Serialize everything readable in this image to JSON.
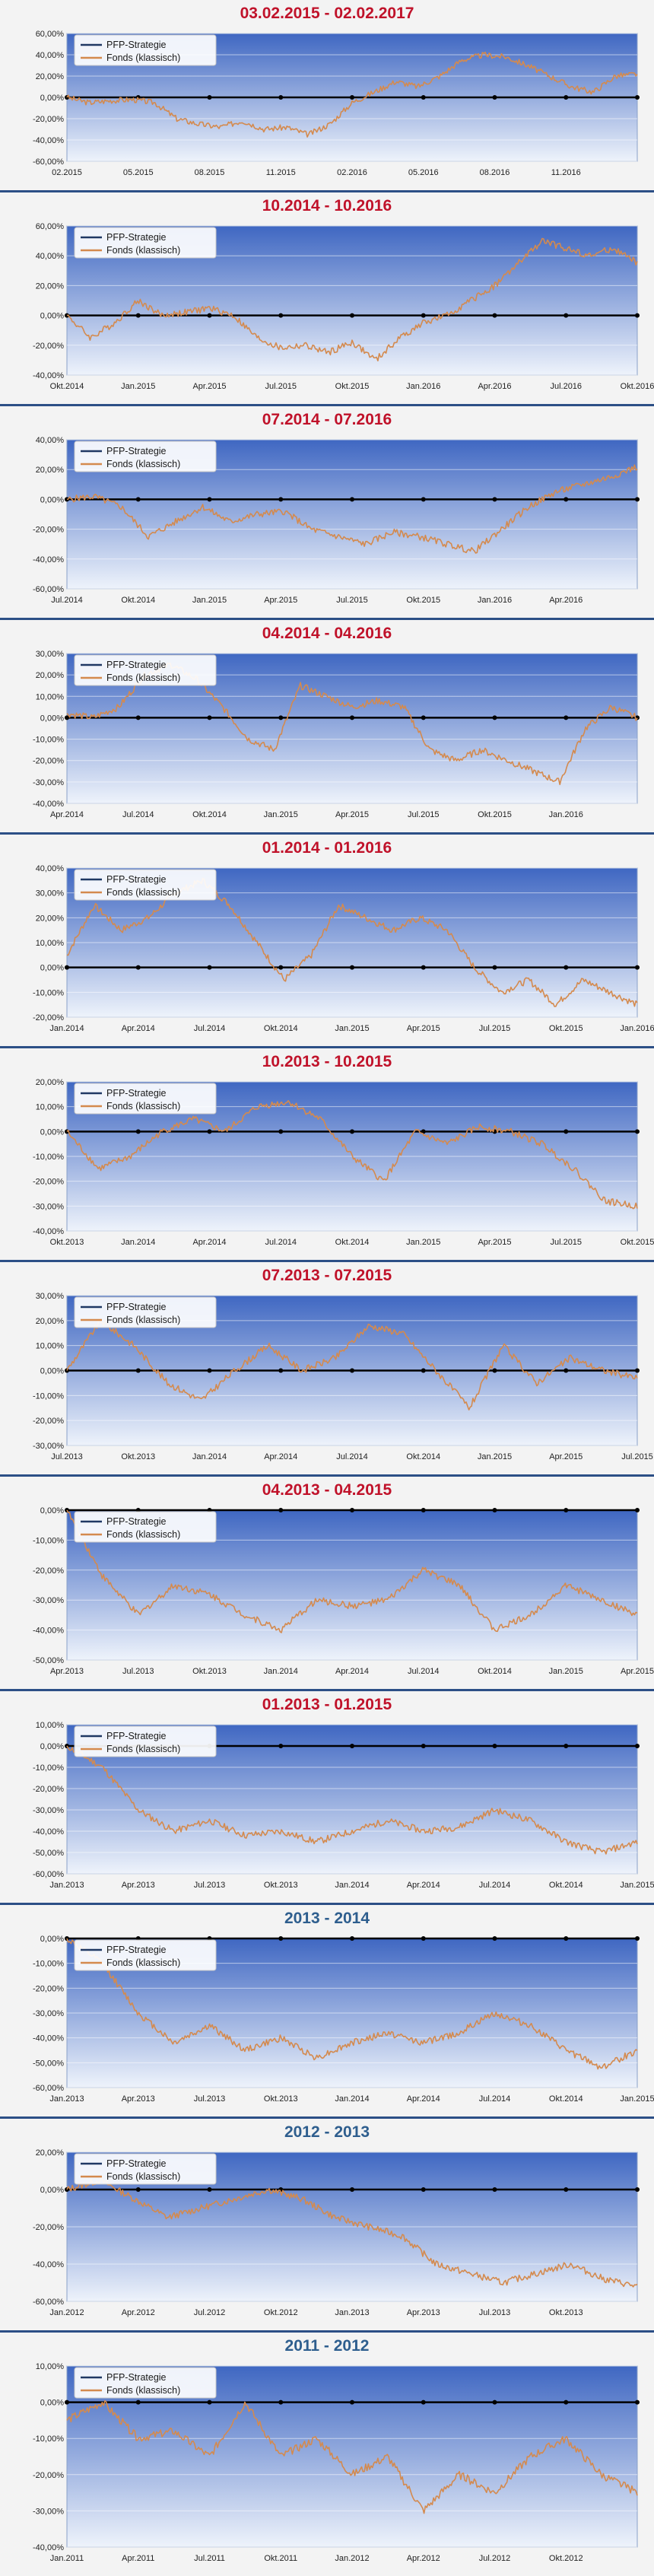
{
  "colors": {
    "title_red": "#c0122a",
    "title_blue": "#2e5e8e",
    "strategy_line": "#1f3864",
    "fund_line": "#d48a4e",
    "zero_line": "#000000",
    "plot_bg_top": "#3f67c2",
    "plot_bg_bottom": "#eef3fb",
    "panel_separator": "#2c4f86"
  },
  "chart_data": [
    {
      "type": "line",
      "title": "03.02.2015 - 02.02.2017",
      "title_color": "red",
      "ylim": [
        -60,
        60
      ],
      "yticks": [
        "60,00%",
        "40,00%",
        "20,00%",
        "0,00%",
        "-20,00%",
        "-40,00%",
        "-60,00%"
      ],
      "xticks": [
        "02.2015",
        "05.2015",
        "08.2015",
        "11.2015",
        "02.2016",
        "05.2016",
        "08.2016",
        "11.2016"
      ],
      "x_start": "2015-02",
      "x_end": "2017-02",
      "legend": [
        "PFP-Strategie",
        "Fonds (klassisch)"
      ],
      "strategy_values": [
        0,
        0,
        0,
        0,
        0,
        0,
        0,
        0,
        0
      ],
      "fund_values": [
        0,
        -5,
        -3,
        -2,
        -5,
        -20,
        -25,
        -28,
        -22,
        -30,
        -28,
        -35,
        -25,
        -5,
        5,
        15,
        10,
        20,
        35,
        40,
        38,
        30,
        20,
        10,
        5,
        20,
        22
      ]
    },
    {
      "type": "line",
      "title": "10.2014 - 10.2016",
      "title_color": "red",
      "ylim": [
        -40,
        60
      ],
      "yticks": [
        "60,00%",
        "40,00%",
        "20,00%",
        "0,00%",
        "-20,00%",
        "-40,00%"
      ],
      "xticks": [
        "Okt.2014",
        "Jan.2015",
        "Apr.2015",
        "Jul.2015",
        "Okt.2015",
        "Jan.2016",
        "Apr.2016",
        "Jul.2016",
        "Okt.2016"
      ],
      "x_start": "2014-10",
      "x_end": "2016-10",
      "legend": [
        "PFP-Strategie",
        "Fonds (klassisch)"
      ],
      "strategy_values": [
        0,
        0,
        0,
        0,
        0,
        0,
        0,
        0,
        0
      ],
      "fund_values": [
        0,
        -15,
        -5,
        10,
        0,
        2,
        5,
        0,
        -15,
        -22,
        -20,
        -25,
        -18,
        -30,
        -15,
        -5,
        0,
        10,
        20,
        35,
        50,
        45,
        40,
        45,
        35
      ]
    },
    {
      "type": "line",
      "title": "07.2014 - 07.2016",
      "title_color": "red",
      "ylim": [
        -60,
        40
      ],
      "yticks": [
        "40,00%",
        "20,00%",
        "0,00%",
        "-20,00%",
        "-40,00%",
        "-60,00%"
      ],
      "xticks": [
        "Jul.2014",
        "Okt.2014",
        "Jan.2015",
        "Apr.2015",
        "Jul.2015",
        "Okt.2015",
        "Jan.2016",
        "Apr.2016"
      ],
      "x_start": "2014-07",
      "x_end": "2016-07",
      "legend": [
        "PFP-Strategie",
        "Fonds (klassisch)"
      ],
      "strategy_values": [
        0,
        0,
        0,
        0,
        0,
        0,
        0,
        0,
        0
      ],
      "fund_values": [
        0,
        2,
        -5,
        -25,
        -15,
        -5,
        -15,
        -10,
        -8,
        -20,
        -25,
        -30,
        -22,
        -25,
        -30,
        -35,
        -20,
        -5,
        5,
        10,
        15,
        22
      ]
    },
    {
      "type": "line",
      "title": "04.2014 - 04.2016",
      "title_color": "red",
      "ylim": [
        -40,
        30
      ],
      "yticks": [
        "30,00%",
        "20,00%",
        "10,00%",
        "0,00%",
        "-10,00%",
        "-20,00%",
        "-30,00%",
        "-40,00%"
      ],
      "xticks": [
        "Apr.2014",
        "Jul.2014",
        "Okt.2014",
        "Jan.2015",
        "Apr.2015",
        "Jul.2015",
        "Okt.2015",
        "Jan.2016"
      ],
      "x_start": "2014-04",
      "x_end": "2016-04",
      "legend": [
        "PFP-Strategie",
        "Fonds (klassisch)"
      ],
      "strategy_values": [
        0,
        0,
        0,
        0,
        0,
        0,
        0,
        0,
        0
      ],
      "fund_values": [
        2,
        0,
        5,
        20,
        25,
        18,
        5,
        -10,
        -15,
        15,
        10,
        5,
        8,
        5,
        -15,
        -20,
        -15,
        -20,
        -25,
        -30,
        -5,
        5,
        0
      ]
    },
    {
      "type": "line",
      "title": "01.2014 - 01.2016",
      "title_color": "red",
      "ylim": [
        -20,
        40
      ],
      "yticks": [
        "40,00%",
        "30,00%",
        "20,00%",
        "10,00%",
        "0,00%",
        "-10,00%",
        "-20,00%"
      ],
      "xticks": [
        "Jan.2014",
        "Apr.2014",
        "Jul.2014",
        "Okt.2014",
        "Jan.2015",
        "Apr.2015",
        "Jul.2015",
        "Okt.2015",
        "Jan.2016"
      ],
      "x_start": "2014-01",
      "x_end": "2016-01",
      "legend": [
        "PFP-Strategie",
        "Fonds (klassisch)"
      ],
      "strategy_values": [
        0,
        0,
        0,
        0,
        0,
        0,
        0,
        0,
        0
      ],
      "fund_values": [
        5,
        25,
        15,
        20,
        30,
        35,
        25,
        10,
        -5,
        5,
        25,
        20,
        15,
        20,
        15,
        0,
        -10,
        -5,
        -15,
        -5,
        -10,
        -15
      ]
    },
    {
      "type": "line",
      "title": "10.2013 - 10.2015",
      "title_color": "red",
      "ylim": [
        -40,
        20
      ],
      "yticks": [
        "20,00%",
        "10,00%",
        "0,00%",
        "-10,00%",
        "-20,00%",
        "-30,00%",
        "-40,00%"
      ],
      "xticks": [
        "Okt.2013",
        "Jan.2014",
        "Apr.2014",
        "Jul.2014",
        "Okt.2014",
        "Jan.2015",
        "Apr.2015",
        "Jul.2015",
        "Okt.2015"
      ],
      "x_start": "2013-10",
      "x_end": "2015-10",
      "legend": [
        "PFP-Strategie",
        "Fonds (klassisch)"
      ],
      "strategy_values": [
        0,
        0,
        0,
        0,
        0,
        0,
        0,
        0,
        0
      ],
      "fund_values": [
        0,
        -15,
        -10,
        0,
        5,
        0,
        10,
        12,
        5,
        -10,
        -20,
        0,
        -5,
        2,
        0,
        -5,
        -15,
        -28,
        -30
      ]
    },
    {
      "type": "line",
      "title": "07.2013 - 07.2015",
      "title_color": "red",
      "ylim": [
        -30,
        30
      ],
      "yticks": [
        "30,00%",
        "20,00%",
        "10,00%",
        "0,00%",
        "-10,00%",
        "-20,00%",
        "-30,00%"
      ],
      "xticks": [
        "Jul.2013",
        "Okt.2013",
        "Jan.2014",
        "Apr.2014",
        "Jul.2014",
        "Okt.2014",
        "Jan.2015",
        "Apr.2015",
        "Jul.2015"
      ],
      "x_start": "2013-07",
      "x_end": "2015-07",
      "legend": [
        "PFP-Strategie",
        "Fonds (klassisch)"
      ],
      "strategy_values": [
        0,
        0,
        0,
        0,
        0,
        0,
        0,
        0,
        0
      ],
      "fund_values": [
        0,
        20,
        10,
        -5,
        -12,
        0,
        10,
        0,
        5,
        18,
        15,
        0,
        -15,
        10,
        -5,
        5,
        0,
        -3
      ]
    },
    {
      "type": "line",
      "title": "04.2013 - 04.2015",
      "title_color": "red",
      "ylim": [
        -50,
        0
      ],
      "yticks": [
        "0,00%",
        "-10,00%",
        "-20,00%",
        "-30,00%",
        "-40,00%",
        "-50,00%"
      ],
      "xticks": [
        "Apr.2013",
        "Jul.2013",
        "Okt.2013",
        "Jan.2014",
        "Apr.2014",
        "Jul.2014",
        "Okt.2014",
        "Jan.2015",
        "Apr.2015"
      ],
      "x_start": "2013-04",
      "x_end": "2015-04",
      "legend": [
        "PFP-Strategie",
        "Fonds (klassisch)"
      ],
      "strategy_values": [
        0,
        0,
        0,
        0,
        0,
        0,
        0,
        0,
        0
      ],
      "fund_values": [
        0,
        -22,
        -35,
        -25,
        -28,
        -35,
        -40,
        -30,
        -32,
        -30,
        -20,
        -25,
        -40,
        -35,
        -25,
        -30,
        -35
      ]
    },
    {
      "type": "line",
      "title": "01.2013 - 01.2015",
      "title_color": "red",
      "ylim": [
        -60,
        10
      ],
      "yticks": [
        "10,00%",
        "0,00%",
        "-10,00%",
        "-20,00%",
        "-30,00%",
        "-40,00%",
        "-50,00%",
        "-60,00%"
      ],
      "xticks": [
        "Jan.2013",
        "Apr.2013",
        "Jul.2013",
        "Okt.2013",
        "Jan.2014",
        "Apr.2014",
        "Jul.2014",
        "Okt.2014",
        "Jan.2015"
      ],
      "x_start": "2013-01",
      "x_end": "2015-01",
      "legend": [
        "PFP-Strategie",
        "Fonds (klassisch)"
      ],
      "strategy_values": [
        0,
        0,
        0,
        0,
        0,
        0,
        0,
        0,
        0
      ],
      "fund_values": [
        0,
        -10,
        -30,
        -40,
        -35,
        -42,
        -40,
        -45,
        -40,
        -35,
        -40,
        -38,
        -30,
        -35,
        -45,
        -50,
        -45
      ]
    },
    {
      "type": "line",
      "title": "2013 - 2014",
      "title_color": "blue",
      "ylim": [
        -60,
        0
      ],
      "yticks": [
        "0,00%",
        "-10,00%",
        "-20,00%",
        "-30,00%",
        "-40,00%",
        "-50,00%",
        "-60,00%"
      ],
      "xticks": [
        "Jan.2013",
        "Apr.2013",
        "Jul.2013",
        "Okt.2013",
        "Jan.2014",
        "Apr.2014",
        "Jul.2014",
        "Okt.2014",
        "Jan.2015"
      ],
      "x_start": "2013-01",
      "x_end": "2015-01",
      "legend": [
        "PFP-Strategie",
        "Fonds (klassisch)"
      ],
      "strategy_values": [
        0,
        0,
        0,
        0,
        0,
        0,
        0,
        0,
        0
      ],
      "fund_values": [
        0,
        -10,
        -30,
        -42,
        -35,
        -45,
        -40,
        -48,
        -42,
        -38,
        -42,
        -38,
        -30,
        -35,
        -45,
        -52,
        -45
      ]
    },
    {
      "type": "line",
      "title": "2012 - 2013",
      "title_color": "blue",
      "ylim": [
        -60,
        20
      ],
      "yticks": [
        "20,00%",
        "0,00%",
        "-20,00%",
        "-40,00%",
        "-60,00%"
      ],
      "xticks": [
        "Jan.2012",
        "Apr.2012",
        "Jul.2012",
        "Okt.2012",
        "Jan.2013",
        "Apr.2013",
        "Jul.2013",
        "Okt.2013"
      ],
      "x_start": "2012-01",
      "x_end": "2014-01",
      "legend": [
        "PFP-Strategie",
        "Fonds (klassisch)"
      ],
      "strategy_values": [
        0,
        0,
        0,
        0,
        0,
        0,
        0,
        0,
        0
      ],
      "fund_values": [
        0,
        5,
        -5,
        -15,
        -10,
        -5,
        0,
        -5,
        -15,
        -20,
        -25,
        -40,
        -45,
        -50,
        -45,
        -40,
        -48,
        -52
      ]
    },
    {
      "type": "line",
      "title": "2011 - 2012",
      "title_color": "blue",
      "ylim": [
        -40,
        10
      ],
      "yticks": [
        "10,00%",
        "0,00%",
        "-10,00%",
        "-20,00%",
        "-30,00%",
        "-40,00%"
      ],
      "xticks": [
        "Jan.2011",
        "Apr.2011",
        "Jul.2011",
        "Okt.2011",
        "Jan.2012",
        "Apr.2012",
        "Jul.2012",
        "Okt.2012"
      ],
      "x_start": "2011-01",
      "x_end": "2013-01",
      "legend": [
        "PFP-Strategie",
        "Fonds (klassisch)"
      ],
      "strategy_values": [
        0,
        0,
        0,
        0,
        0,
        0,
        0,
        0,
        0
      ],
      "fund_values": [
        -5,
        0,
        -10,
        -8,
        -15,
        0,
        -15,
        -10,
        -20,
        -15,
        -30,
        -20,
        -25,
        -15,
        -10,
        -20,
        -25
      ]
    }
  ]
}
